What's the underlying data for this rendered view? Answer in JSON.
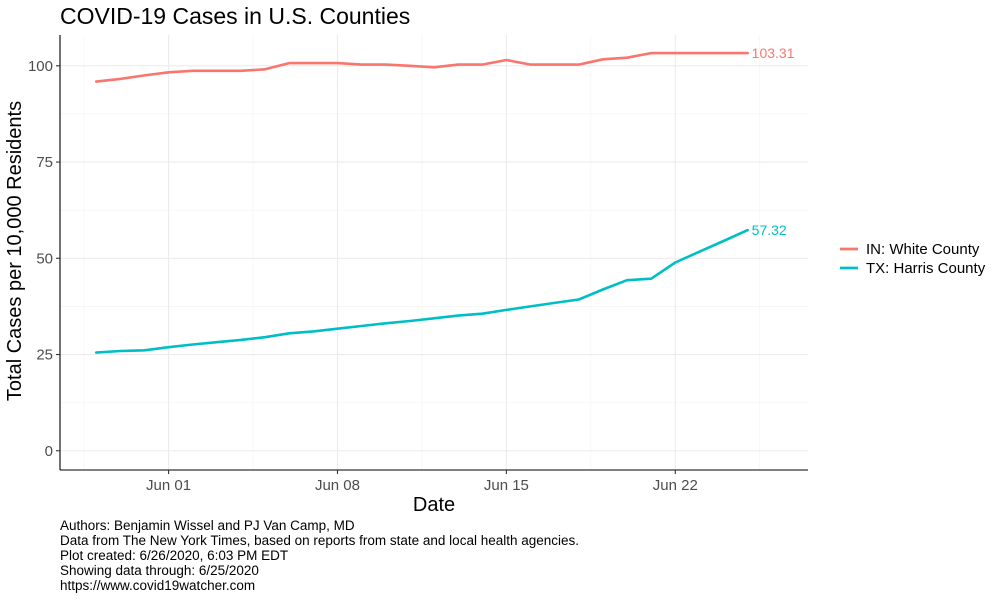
{
  "chart_data": {
    "type": "line",
    "title": "COVID-19 Cases in U.S. Counties",
    "xlabel": "Date",
    "ylabel": "Total Cases per 10,000 Residents",
    "xlim": [
      -3.5,
      27.5
    ],
    "ylim": [
      -5,
      108
    ],
    "x_ticks": [
      {
        "pos": 1,
        "label": "Jun 01"
      },
      {
        "pos": 8,
        "label": "Jun 08"
      },
      {
        "pos": 15,
        "label": "Jun 15"
      },
      {
        "pos": 22,
        "label": "Jun 22"
      }
    ],
    "y_ticks": [
      {
        "pos": 0,
        "label": "0"
      },
      {
        "pos": 25,
        "label": "25"
      },
      {
        "pos": 50,
        "label": "50"
      },
      {
        "pos": 75,
        "label": "75"
      },
      {
        "pos": 100,
        "label": "100"
      }
    ],
    "grid": true,
    "legend_position": "right",
    "series": [
      {
        "name": "IN: White County",
        "color": "#F8766D",
        "end_label": "103.31",
        "x": [
          -2,
          -1,
          0,
          1,
          2,
          3,
          4,
          5,
          6,
          7,
          8,
          9,
          10,
          11,
          12,
          13,
          14,
          15,
          16,
          17,
          18,
          19,
          20,
          21,
          22,
          23,
          24,
          25
        ],
        "values": [
          95.9,
          96.6,
          97.5,
          98.3,
          98.7,
          98.7,
          98.7,
          99.1,
          100.7,
          100.7,
          100.7,
          100.3,
          100.3,
          100.0,
          99.6,
          100.3,
          100.3,
          101.5,
          100.3,
          100.3,
          100.3,
          101.7,
          102.1,
          103.3,
          103.3,
          103.3,
          103.3,
          103.31
        ]
      },
      {
        "name": "TX: Harris County",
        "color": "#00BFC4",
        "end_label": "57.32",
        "x": [
          -2,
          -1,
          0,
          1,
          2,
          3,
          4,
          5,
          6,
          7,
          8,
          9,
          10,
          11,
          12,
          13,
          14,
          15,
          16,
          17,
          18,
          19,
          20,
          21,
          22,
          23,
          24,
          25
        ],
        "values": [
          25.5,
          25.9,
          26.1,
          26.9,
          27.6,
          28.2,
          28.8,
          29.5,
          30.5,
          31.0,
          31.7,
          32.4,
          33.1,
          33.7,
          34.4,
          35.1,
          35.6,
          36.6,
          37.5,
          38.4,
          39.3,
          41.9,
          44.3,
          44.7,
          48.9,
          51.7,
          54.5,
          57.32
        ]
      }
    ]
  },
  "caption": {
    "authors": "Authors: Benjamin Wissel and PJ Van Camp, MD",
    "source": "Data from The New York Times, based on reports from state and local health agencies.",
    "created": "Plot created: 6/26/2020, 6:03 PM EDT",
    "through": "Showing data through: 6/25/2020",
    "url": "https://www.covid19watcher.com"
  }
}
